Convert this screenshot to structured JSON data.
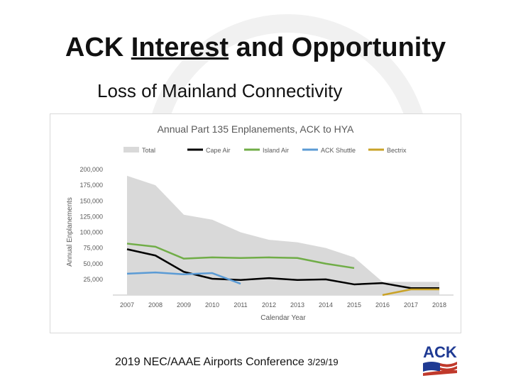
{
  "slide": {
    "title_part1": "ACK ",
    "title_part2": "Interest",
    "title_part3": " and Opportunity",
    "subtitle": "Loss of Mainland Connectivity",
    "footer_text": "2019 NEC/AAAE Airports Conference ",
    "footer_date": "3/29/19",
    "logo_text": "ACK"
  },
  "colors": {
    "Total": "#d9d9d9",
    "Cape Air": "#000000",
    "Island Air": "#70ad47",
    "ACK Shuttle": "#5b9bd5",
    "Bectrix": "#c9a227"
  },
  "chart_data": {
    "type": "line",
    "title": "Annual Part 135 Enplanements, ACK to HYA",
    "xlabel": "Calendar Year",
    "ylabel": "Annual Enplanements",
    "categories": [
      "2007",
      "2008",
      "2009",
      "2010",
      "2011",
      "2012",
      "2013",
      "2014",
      "2015",
      "2016",
      "2017",
      "2018"
    ],
    "y_ticks": [
      {
        "value": 25000,
        "label": "25,000"
      },
      {
        "value": 50000,
        "label": "50,000"
      },
      {
        "value": 75000,
        "label": "75,000"
      },
      {
        "value": 100000,
        "label": "100,000"
      },
      {
        "value": 125000,
        "label": "125,000"
      },
      {
        "value": 150000,
        "label": "150,000"
      },
      {
        "value": 175000,
        "label": "175,000"
      },
      {
        "value": 200000,
        "label": "200,000"
      }
    ],
    "ylim": [
      0,
      200000
    ],
    "legend_position": "top",
    "grid": false,
    "series": [
      {
        "name": "Total",
        "style": "area",
        "values": [
          190000,
          175000,
          128000,
          120000,
          100000,
          88000,
          84000,
          75000,
          60000,
          21000,
          21000,
          21000
        ]
      },
      {
        "name": "Cape Air",
        "style": "line",
        "values": [
          73000,
          63000,
          37000,
          26000,
          24000,
          27000,
          24000,
          25000,
          17000,
          19000,
          11000,
          11000
        ]
      },
      {
        "name": "Island Air",
        "style": "line",
        "values": [
          82000,
          77000,
          58000,
          60000,
          59000,
          60000,
          59000,
          50000,
          43000,
          null,
          null,
          null
        ]
      },
      {
        "name": "ACK Shuttle",
        "style": "line",
        "values": [
          34000,
          36000,
          33000,
          35000,
          18000,
          null,
          null,
          null,
          null,
          null,
          null,
          null
        ]
      },
      {
        "name": "Bectrix",
        "style": "line",
        "values": [
          null,
          null,
          null,
          null,
          null,
          null,
          null,
          null,
          null,
          0,
          9000,
          9000
        ]
      }
    ]
  }
}
